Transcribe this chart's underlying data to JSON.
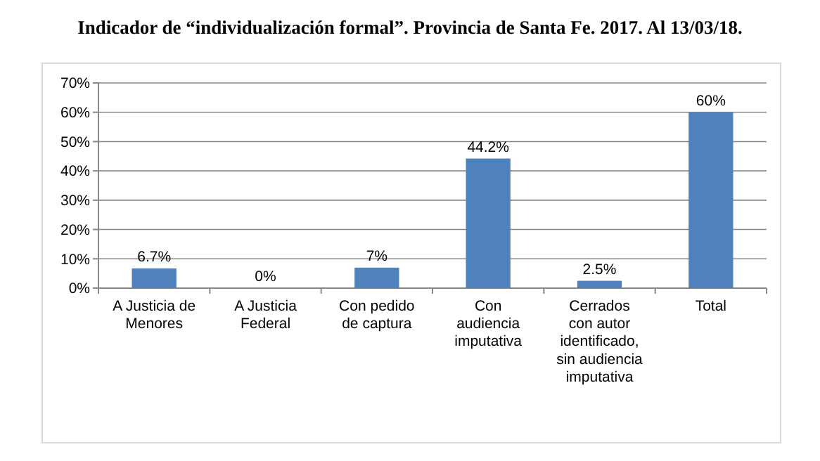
{
  "chart_data": {
    "type": "bar",
    "title": "Indicador de “individualización formal”. Provincia de Santa Fe. 2017. Al 13/03/18.",
    "categories": [
      "A Justicia de Menores",
      "A Justicia Federal",
      "Con pedido de captura",
      "Con audiencia imputativa",
      "Cerrados con autor identificado, sin audiencia imputativa",
      "Total"
    ],
    "values": [
      6.7,
      0,
      7,
      44.2,
      2.5,
      60
    ],
    "value_labels": [
      "6.7%",
      "0%",
      "7%",
      "44.2%",
      "2.5%",
      "60%"
    ],
    "color": "#4f81bd",
    "ylim": [
      0,
      70
    ],
    "yticks": [
      {
        "value": 0,
        "label": "0%"
      },
      {
        "value": 10,
        "label": "10%"
      },
      {
        "value": 20,
        "label": "20%"
      },
      {
        "value": 30,
        "label": "30%"
      },
      {
        "value": 40,
        "label": "40%"
      },
      {
        "value": 50,
        "label": "50%"
      },
      {
        "value": 60,
        "label": "60%"
      },
      {
        "value": 70,
        "label": "70%"
      }
    ],
    "grid": "y"
  }
}
